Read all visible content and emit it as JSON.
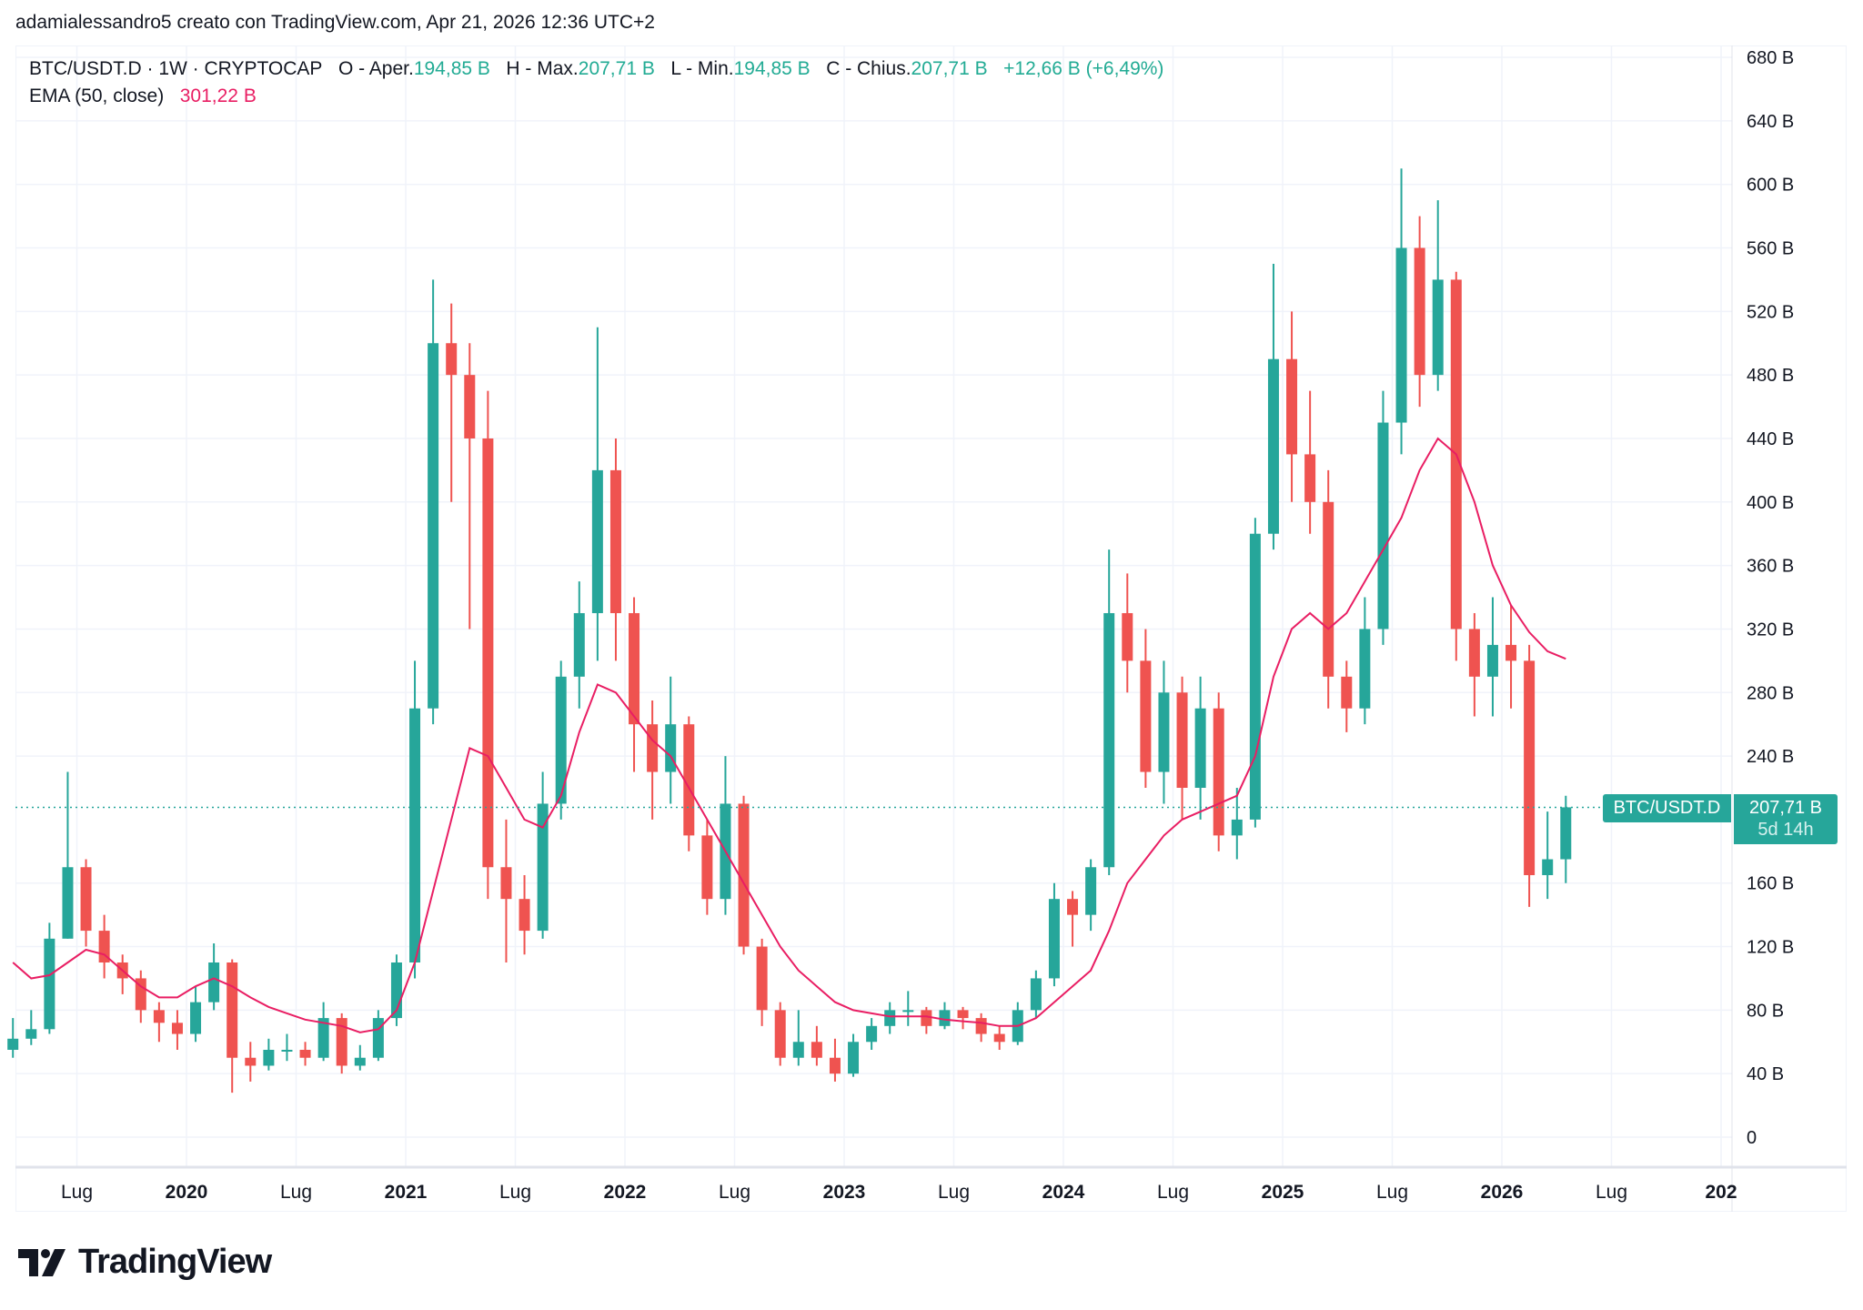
{
  "caption": "adamialessandro5 creato con TradingView.com, Apr 21, 2026 12:36 UTC+2",
  "legend": {
    "symbol": "BTC/USDT.D · 1W · CRYPTOCAP",
    "open_label": "O - Aper.",
    "open": "194,85 B",
    "high_label": "H - Max.",
    "high": "207,71 B",
    "low_label": "L - Min.",
    "low": "194,85 B",
    "close_label": "C - Chius.",
    "close": "207,71 B",
    "change": "+12,66 B (+6,49%)",
    "ema_label": "EMA (50, close)",
    "ema_value": "301,22 B"
  },
  "last_price": {
    "symbol": "BTC/USDT.D",
    "value": "207,71 B",
    "countdown": "5d 14h",
    "level": 207.71
  },
  "brand": "TradingView",
  "colors": {
    "up": "#26a69a",
    "down": "#ef5350",
    "ema": "#e91e63",
    "grid": "#f0f3fa"
  },
  "chart_data": {
    "type": "candlestick",
    "interval_shown": "1W",
    "aggregation_note_free": true,
    "start_month": "2019-03",
    "first_open": 55,
    "close": [
      62,
      68,
      125,
      170,
      130,
      110,
      100,
      80,
      72,
      65,
      85,
      110,
      50,
      45,
      55,
      55,
      50,
      75,
      45,
      50,
      75,
      110,
      270,
      500,
      480,
      440,
      170,
      150,
      130,
      210,
      290,
      330,
      420,
      330,
      260,
      230,
      260,
      190,
      150,
      210,
      120,
      80,
      50,
      60,
      50,
      40,
      60,
      70,
      80,
      80,
      70,
      80,
      75,
      65,
      60,
      80,
      100,
      150,
      140,
      170,
      330,
      300,
      230,
      280,
      220,
      270,
      190,
      200,
      380,
      490,
      430,
      400,
      290,
      270,
      320,
      450,
      560,
      480,
      540,
      320,
      290,
      310,
      300,
      165,
      175,
      207.71
    ],
    "high": [
      75,
      80,
      135,
      230,
      175,
      140,
      115,
      105,
      85,
      80,
      95,
      122,
      112,
      60,
      62,
      65,
      60,
      85,
      78,
      58,
      80,
      115,
      300,
      540,
      525,
      500,
      470,
      200,
      165,
      230,
      300,
      350,
      510,
      440,
      340,
      275,
      290,
      265,
      200,
      240,
      215,
      125,
      85,
      80,
      70,
      62,
      65,
      75,
      85,
      92,
      82,
      85,
      82,
      78,
      70,
      85,
      105,
      160,
      155,
      175,
      370,
      355,
      320,
      300,
      290,
      290,
      280,
      220,
      390,
      550,
      520,
      470,
      420,
      300,
      340,
      470,
      610,
      580,
      590,
      545,
      330,
      340,
      335,
      310,
      205,
      215
    ],
    "low": [
      50,
      58,
      65,
      125,
      120,
      100,
      90,
      72,
      60,
      55,
      60,
      80,
      28,
      35,
      42,
      48,
      45,
      48,
      40,
      42,
      48,
      70,
      100,
      260,
      400,
      320,
      150,
      110,
      115,
      125,
      200,
      270,
      300,
      300,
      230,
      200,
      210,
      180,
      140,
      140,
      115,
      70,
      45,
      45,
      45,
      35,
      38,
      55,
      65,
      70,
      65,
      68,
      68,
      60,
      55,
      58,
      75,
      95,
      120,
      130,
      165,
      280,
      220,
      210,
      200,
      200,
      180,
      175,
      195,
      370,
      400,
      380,
      270,
      255,
      260,
      310,
      430,
      460,
      470,
      300,
      265,
      265,
      270,
      145,
      150,
      160
    ],
    "ema_50": [
      110,
      100,
      102,
      110,
      118,
      115,
      105,
      95,
      88,
      88,
      95,
      100,
      95,
      88,
      82,
      78,
      74,
      72,
      70,
      66,
      68,
      80,
      110,
      155,
      200,
      245,
      240,
      220,
      200,
      195,
      215,
      255,
      285,
      280,
      265,
      250,
      240,
      220,
      200,
      180,
      160,
      140,
      120,
      105,
      95,
      85,
      80,
      78,
      76,
      76,
      76,
      74,
      73,
      72,
      70,
      70,
      75,
      85,
      95,
      105,
      130,
      160,
      175,
      190,
      200,
      205,
      210,
      215,
      240,
      290,
      320,
      330,
      320,
      330,
      350,
      370,
      390,
      420,
      440,
      430,
      400,
      360,
      335,
      318,
      306,
      301.22
    ],
    "y_unit": "B",
    "ylim": [
      0,
      680
    ],
    "y_ticks": [
      {
        "v": 680,
        "label": "680 B"
      },
      {
        "v": 640,
        "label": "640 B"
      },
      {
        "v": 600,
        "label": "600 B"
      },
      {
        "v": 560,
        "label": "560 B"
      },
      {
        "v": 520,
        "label": "520 B"
      },
      {
        "v": 480,
        "label": "480 B"
      },
      {
        "v": 440,
        "label": "440 B"
      },
      {
        "v": 400,
        "label": "400 B"
      },
      {
        "v": 360,
        "label": "360 B"
      },
      {
        "v": 320,
        "label": "320 B"
      },
      {
        "v": 280,
        "label": "280 B"
      },
      {
        "v": 240,
        "label": "240 B"
      },
      {
        "v": 160,
        "label": "160 B"
      },
      {
        "v": 120,
        "label": "120 B"
      },
      {
        "v": 80,
        "label": "80 B"
      },
      {
        "v": 40,
        "label": "40 B"
      },
      {
        "v": 0,
        "label": "0"
      }
    ],
    "x_ticks": [
      {
        "d": "2019-07",
        "label": "Lug",
        "bold": false
      },
      {
        "d": "2020-01",
        "label": "2020",
        "bold": true
      },
      {
        "d": "2020-07",
        "label": "Lug",
        "bold": false
      },
      {
        "d": "2021-01",
        "label": "2021",
        "bold": true
      },
      {
        "d": "2021-07",
        "label": "Lug",
        "bold": false
      },
      {
        "d": "2022-01",
        "label": "2022",
        "bold": true
      },
      {
        "d": "2022-07",
        "label": "Lug",
        "bold": false
      },
      {
        "d": "2023-01",
        "label": "2023",
        "bold": true
      },
      {
        "d": "2023-07",
        "label": "Lug",
        "bold": false
      },
      {
        "d": "2024-01",
        "label": "2024",
        "bold": true
      },
      {
        "d": "2024-07",
        "label": "Lug",
        "bold": false
      },
      {
        "d": "2025-01",
        "label": "2025",
        "bold": true
      },
      {
        "d": "2025-07",
        "label": "Lug",
        "bold": false
      },
      {
        "d": "2026-01",
        "label": "2026",
        "bold": true
      },
      {
        "d": "2026-07",
        "label": "Lug",
        "bold": false
      },
      {
        "d": "2027-01",
        "label": "202",
        "bold": true
      }
    ],
    "grid": true,
    "legend_position": "top-left"
  }
}
